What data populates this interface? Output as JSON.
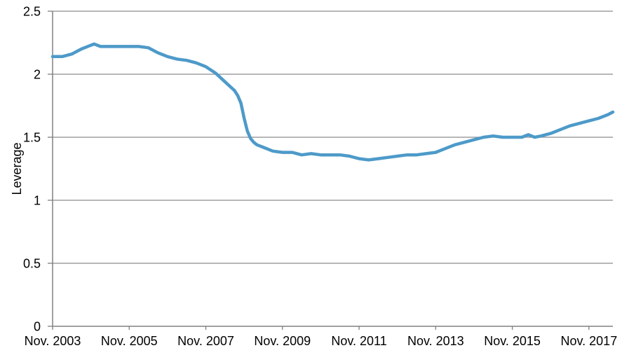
{
  "chart_data": {
    "type": "line",
    "title": "",
    "xlabel": "",
    "ylabel": "Leverage",
    "ylim": [
      0,
      2.5
    ],
    "y_ticks": [
      0,
      0.5,
      1,
      1.5,
      2,
      2.5
    ],
    "y_tick_labels": [
      "0",
      "0.5",
      "1",
      "1.5",
      "2",
      "2.5"
    ],
    "x_tick_labels": [
      "Nov. 2003",
      "Nov. 2005",
      "Nov. 2007",
      "Nov. 2009",
      "Nov. 2011",
      "Nov. 2013",
      "Nov. 2015",
      "Nov. 2017"
    ],
    "x_tick_month_offsets": [
      0,
      24,
      48,
      72,
      96,
      120,
      144,
      168
    ],
    "x_range_months": [
      0,
      175.5
    ],
    "x_epoch": "Nov. 2003",
    "grid": "horizontal",
    "legend": "none",
    "series": [
      {
        "name": "Leverage",
        "points_format": [
          "months_since_Nov2003",
          "leverage"
        ],
        "points": [
          [
            0,
            2.14
          ],
          [
            3,
            2.14
          ],
          [
            6,
            2.16
          ],
          [
            9,
            2.2
          ],
          [
            12,
            2.23
          ],
          [
            13,
            2.24
          ],
          [
            15,
            2.22
          ],
          [
            18,
            2.22
          ],
          [
            21,
            2.22
          ],
          [
            24,
            2.22
          ],
          [
            27,
            2.22
          ],
          [
            30,
            2.21
          ],
          [
            33,
            2.17
          ],
          [
            36,
            2.14
          ],
          [
            39,
            2.12
          ],
          [
            42,
            2.11
          ],
          [
            45,
            2.09
          ],
          [
            48,
            2.06
          ],
          [
            51,
            2.01
          ],
          [
            54,
            1.94
          ],
          [
            57,
            1.87
          ],
          [
            58,
            1.83
          ],
          [
            59,
            1.77
          ],
          [
            60,
            1.65
          ],
          [
            61,
            1.55
          ],
          [
            62,
            1.49
          ],
          [
            63,
            1.46
          ],
          [
            64,
            1.44
          ],
          [
            66,
            1.42
          ],
          [
            69,
            1.39
          ],
          [
            72,
            1.38
          ],
          [
            75,
            1.38
          ],
          [
            78,
            1.36
          ],
          [
            81,
            1.37
          ],
          [
            84,
            1.36
          ],
          [
            87,
            1.36
          ],
          [
            90,
            1.36
          ],
          [
            93,
            1.35
          ],
          [
            96,
            1.33
          ],
          [
            99,
            1.32
          ],
          [
            102,
            1.33
          ],
          [
            105,
            1.34
          ],
          [
            108,
            1.35
          ],
          [
            111,
            1.36
          ],
          [
            114,
            1.36
          ],
          [
            117,
            1.37
          ],
          [
            120,
            1.38
          ],
          [
            123,
            1.41
          ],
          [
            126,
            1.44
          ],
          [
            129,
            1.46
          ],
          [
            132,
            1.48
          ],
          [
            135,
            1.5
          ],
          [
            138,
            1.51
          ],
          [
            141,
            1.5
          ],
          [
            144,
            1.5
          ],
          [
            147,
            1.5
          ],
          [
            149,
            1.52
          ],
          [
            151,
            1.5
          ],
          [
            153,
            1.51
          ],
          [
            156,
            1.53
          ],
          [
            159,
            1.56
          ],
          [
            162,
            1.59
          ],
          [
            165,
            1.61
          ],
          [
            168,
            1.63
          ],
          [
            171,
            1.65
          ],
          [
            174,
            1.68
          ],
          [
            175.5,
            1.7
          ]
        ]
      }
    ]
  },
  "colors": {
    "line": "#4d9ac9",
    "grid": "#8c8c8c",
    "axis": "#808080",
    "text": "#000000",
    "background": "#ffffff"
  }
}
